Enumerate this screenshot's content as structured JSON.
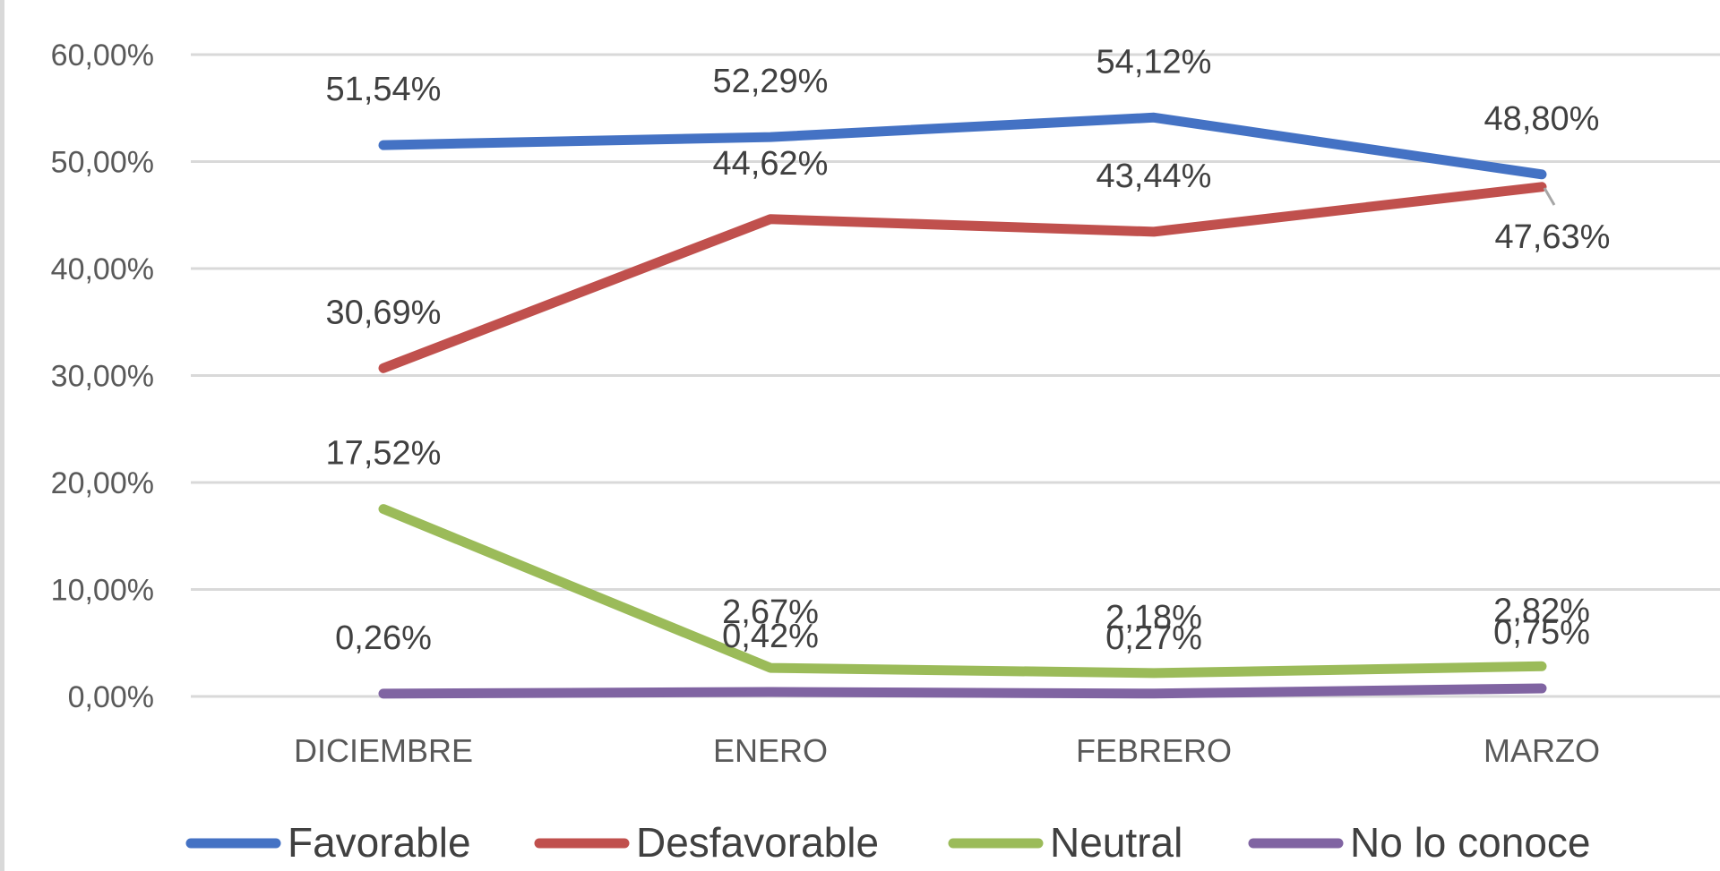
{
  "chart_data": {
    "type": "line",
    "title": "",
    "xlabel": "",
    "ylabel": "",
    "categories": [
      "DICIEMBRE",
      "ENERO",
      "FEBRERO",
      "MARZO"
    ],
    "ylim": [
      0,
      60
    ],
    "yticks": [
      0,
      10,
      20,
      30,
      40,
      50,
      60
    ],
    "ytick_labels": [
      "0,00%",
      "10,00%",
      "20,00%",
      "30,00%",
      "40,00%",
      "50,00%",
      "60,00%"
    ],
    "grid": true,
    "legend": "bottom",
    "series": [
      {
        "name": "Favorable",
        "color": "#4472c4",
        "values": [
          51.54,
          52.29,
          54.12,
          48.8
        ],
        "labels": [
          "51,54%",
          "52,29%",
          "54,12%",
          "48,80%"
        ]
      },
      {
        "name": "Desfavorable",
        "color": "#c0504d",
        "values": [
          30.69,
          44.62,
          43.44,
          47.63
        ],
        "labels": [
          "30,69%",
          "44,62%",
          "43,44%",
          "47,63%"
        ]
      },
      {
        "name": "Neutral",
        "color": "#9bbb59",
        "values": [
          17.52,
          2.67,
          2.18,
          2.82
        ],
        "labels": [
          "17,52%",
          "2,67%",
          "2,18%",
          "2,82%"
        ]
      },
      {
        "name": "No lo conoce",
        "color": "#8064a2",
        "values": [
          0.26,
          0.42,
          0.27,
          0.75
        ],
        "labels": [
          "0,26%",
          "0,42%",
          "0,27%",
          "0,75%"
        ]
      }
    ]
  }
}
